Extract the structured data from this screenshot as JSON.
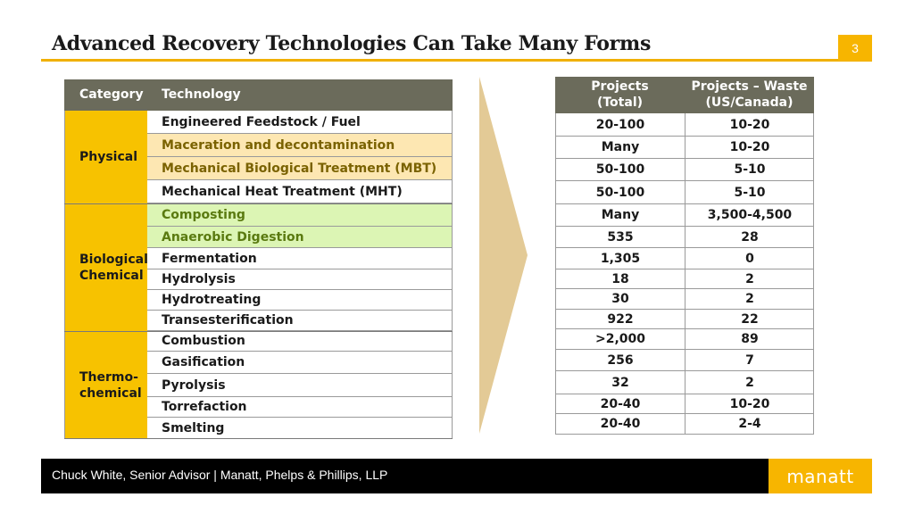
{
  "slide": {
    "title": "Advanced Recovery Technologies Can Take Many Forms",
    "page_number": "3",
    "colors": {
      "accent": "#f7b500",
      "header": "#6b6b5b",
      "category": "#f7c200",
      "row_yellow": "#fde7b2",
      "row_green": "#dcf5b4"
    }
  },
  "left_table": {
    "headers": {
      "category": "Category",
      "technology": "Technology"
    },
    "categories": {
      "physical": "Physical",
      "biological": "Biological\nChemical",
      "thermo": "Thermo-\nchemical"
    },
    "rows": [
      "Engineered Feedstock / Fuel",
      "Maceration and decontamination",
      "Mechanical Biological Treatment (MBT)",
      "Mechanical Heat Treatment (MHT)",
      "Composting",
      "Anaerobic Digestion",
      "Fermentation",
      "Hydrolysis",
      "Hydrotreating",
      "Transesterification",
      "Combustion",
      "Gasification",
      "Pyrolysis",
      "Torrefaction",
      "Smelting"
    ]
  },
  "right_table": {
    "headers": {
      "projects_total": "Projects\n(Total)",
      "projects_waste": "Projects – Waste\n(US/Canada)"
    },
    "rows": [
      {
        "total": "20-100",
        "waste": "10-20"
      },
      {
        "total": "Many",
        "waste": "10-20"
      },
      {
        "total": "50-100",
        "waste": "5-10"
      },
      {
        "total": "50-100",
        "waste": "5-10"
      },
      {
        "total": "Many",
        "waste": "3,500-4,500"
      },
      {
        "total": "535",
        "waste": "28"
      },
      {
        "total": "1,305",
        "waste": "0"
      },
      {
        "total": "18",
        "waste": "2"
      },
      {
        "total": "30",
        "waste": "2"
      },
      {
        "total": "922",
        "waste": "22"
      },
      {
        "total": ">2,000",
        "waste": "89"
      },
      {
        "total": "256",
        "waste": "7"
      },
      {
        "total": "32",
        "waste": "2"
      },
      {
        "total": "20-40",
        "waste": "10-20"
      },
      {
        "total": "20-40",
        "waste": "2-4"
      }
    ]
  },
  "footer": {
    "text": "Chuck White, Senior Advisor | Manatt, Phelps & Phillips, LLP",
    "logo": "manatt"
  }
}
